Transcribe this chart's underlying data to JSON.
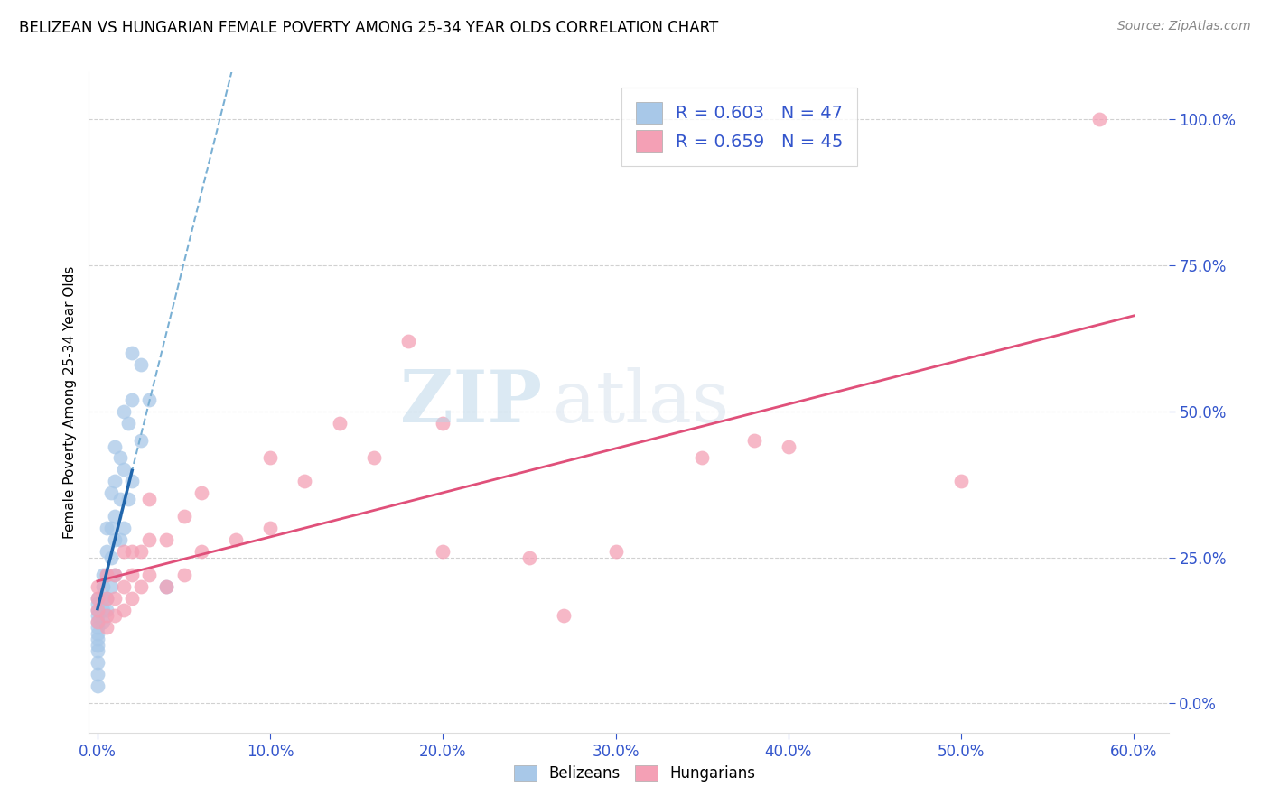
{
  "title": "BELIZEAN VS HUNGARIAN FEMALE POVERTY AMONG 25-34 YEAR OLDS CORRELATION CHART",
  "source": "Source: ZipAtlas.com",
  "xlabel_ticks": [
    "0.0%",
    "10.0%",
    "20.0%",
    "30.0%",
    "40.0%",
    "50.0%",
    "60.0%"
  ],
  "xlabel_vals": [
    0.0,
    10.0,
    20.0,
    30.0,
    40.0,
    50.0,
    60.0
  ],
  "ylabel": "Female Poverty Among 25-34 Year Olds",
  "ylabel_ticks": [
    "0.0%",
    "25.0%",
    "50.0%",
    "75.0%",
    "100.0%"
  ],
  "ylabel_vals": [
    0.0,
    25.0,
    50.0,
    75.0,
    100.0
  ],
  "xlim": [
    -0.5,
    62.0
  ],
  "ylim": [
    -5.0,
    108.0
  ],
  "belizean_color": "#a8c8e8",
  "belizean_line_color": "#2166ac",
  "belizean_line_dash_color": "#7ab0d4",
  "hungarian_color": "#f4a0b5",
  "hungarian_line_color": "#e0507a",
  "belizean_R": 0.603,
  "belizean_N": 47,
  "hungarian_R": 0.659,
  "hungarian_N": 45,
  "legend_text_color": "#3355cc",
  "watermark_zip": "ZIP",
  "watermark_atlas": "atlas",
  "belizean_x": [
    0.0,
    0.0,
    0.0,
    0.0,
    0.0,
    0.0,
    0.0,
    0.0,
    0.0,
    0.0,
    0.0,
    0.0,
    0.0,
    0.3,
    0.3,
    0.3,
    0.3,
    0.3,
    0.5,
    0.5,
    0.5,
    0.5,
    0.5,
    0.8,
    0.8,
    0.8,
    0.8,
    1.0,
    1.0,
    1.0,
    1.0,
    1.0,
    1.3,
    1.3,
    1.3,
    1.5,
    1.5,
    1.5,
    1.8,
    1.8,
    2.0,
    2.0,
    2.0,
    2.5,
    2.5,
    3.0,
    4.0
  ],
  "belizean_y": [
    5.0,
    7.0,
    9.0,
    10.0,
    11.0,
    12.0,
    13.0,
    14.0,
    15.0,
    16.0,
    17.0,
    18.0,
    3.0,
    14.0,
    16.0,
    18.0,
    20.0,
    22.0,
    16.0,
    18.0,
    22.0,
    26.0,
    30.0,
    20.0,
    25.0,
    30.0,
    36.0,
    22.0,
    28.0,
    32.0,
    38.0,
    44.0,
    28.0,
    35.0,
    42.0,
    30.0,
    40.0,
    50.0,
    35.0,
    48.0,
    38.0,
    52.0,
    60.0,
    45.0,
    58.0,
    52.0,
    20.0
  ],
  "hungarian_x": [
    0.0,
    0.0,
    0.0,
    0.0,
    0.5,
    0.5,
    0.5,
    0.5,
    1.0,
    1.0,
    1.0,
    1.5,
    1.5,
    1.5,
    2.0,
    2.0,
    2.0,
    2.5,
    2.5,
    3.0,
    3.0,
    3.0,
    4.0,
    4.0,
    5.0,
    5.0,
    6.0,
    6.0,
    8.0,
    10.0,
    10.0,
    12.0,
    14.0,
    16.0,
    18.0,
    20.0,
    20.0,
    25.0,
    27.0,
    30.0,
    35.0,
    38.0,
    40.0,
    50.0,
    58.0
  ],
  "hungarian_y": [
    14.0,
    16.0,
    18.0,
    20.0,
    13.0,
    15.0,
    18.0,
    22.0,
    15.0,
    18.0,
    22.0,
    16.0,
    20.0,
    26.0,
    18.0,
    22.0,
    26.0,
    20.0,
    26.0,
    22.0,
    28.0,
    35.0,
    20.0,
    28.0,
    22.0,
    32.0,
    26.0,
    36.0,
    28.0,
    30.0,
    42.0,
    38.0,
    48.0,
    42.0,
    62.0,
    26.0,
    48.0,
    25.0,
    15.0,
    26.0,
    42.0,
    45.0,
    44.0,
    38.0,
    100.0
  ]
}
